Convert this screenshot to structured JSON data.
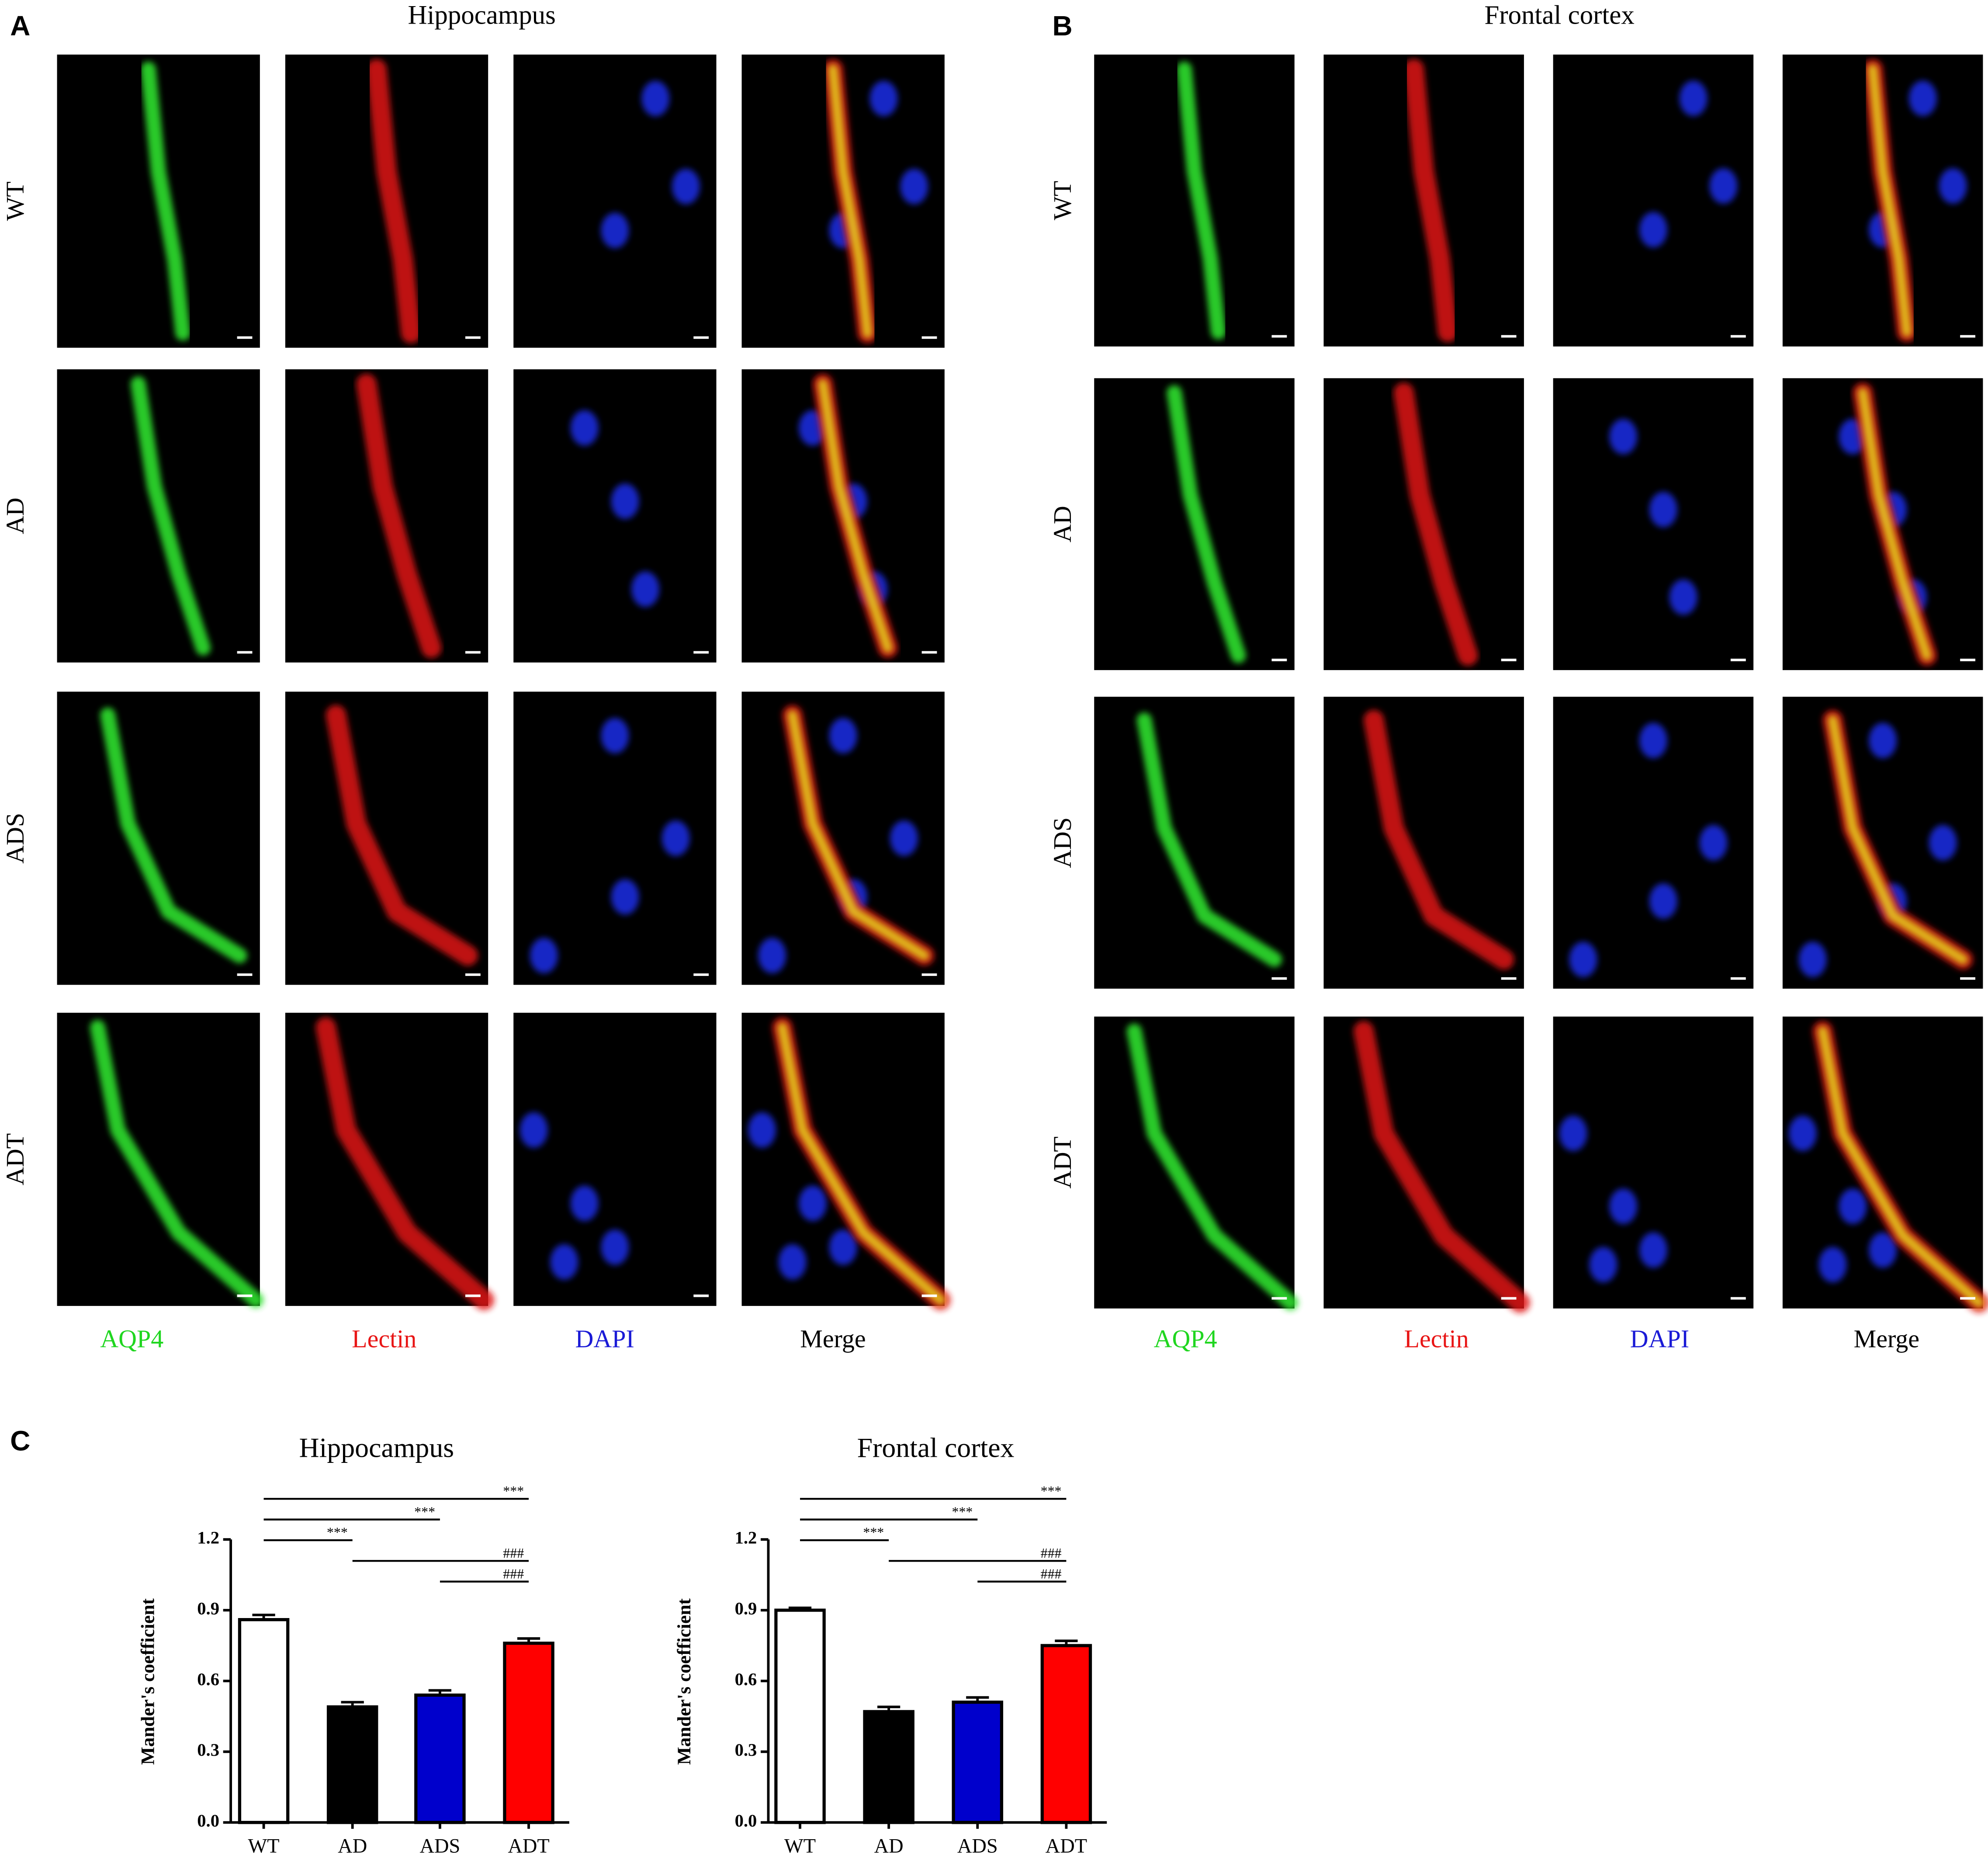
{
  "panels": [
    {
      "letter": "A",
      "title": "Hippocampus",
      "rows": [
        "WT",
        "AD",
        "ADS",
        "ADT"
      ],
      "columns": [
        {
          "label": "AQP4",
          "color": "#1fd61f"
        },
        {
          "label": "Lectin",
          "color": "#e81515"
        },
        {
          "label": "DAPI",
          "color": "#1a1ad6"
        },
        {
          "label": "Merge",
          "color": "#000000"
        }
      ]
    },
    {
      "letter": "B",
      "title": "Frontal cortex",
      "rows": [
        "WT",
        "AD",
        "ADS",
        "ADT"
      ],
      "columns": [
        {
          "label": "AQP4",
          "color": "#1fd61f"
        },
        {
          "label": "Lectin",
          "color": "#e81515"
        },
        {
          "label": "DAPI",
          "color": "#1a1ad6"
        },
        {
          "label": "Merge",
          "color": "#000000"
        }
      ]
    }
  ],
  "panel_c_letter": "C",
  "chart_data": [
    {
      "type": "bar",
      "title": "Hippocampus",
      "y_label": "Mander's coefficient",
      "categories": [
        "WT",
        "AD",
        "ADS",
        "ADT"
      ],
      "values": [
        0.86,
        0.49,
        0.54,
        0.76
      ],
      "errors": [
        0.02,
        0.02,
        0.02,
        0.02
      ],
      "colors": [
        "#ffffff",
        "#000000",
        "#0000cc",
        "#ff0000"
      ],
      "ylim": [
        0,
        1.2
      ],
      "yticks": [
        {
          "value": 0,
          "label": "0.0"
        },
        0.3,
        0.6,
        0.9,
        1.2
      ],
      "comparisons": [
        {
          "between": [
            "WT",
            "ADT"
          ],
          "label": "***"
        },
        {
          "between": [
            "WT",
            "ADS"
          ],
          "label": "***"
        },
        {
          "between": [
            "WT",
            "AD"
          ],
          "label": "***"
        },
        {
          "between": [
            "AD",
            "ADT"
          ],
          "label": "###"
        },
        {
          "between": [
            "ADS",
            "ADT"
          ],
          "label": "###"
        }
      ]
    },
    {
      "type": "bar",
      "title": "Frontal cortex",
      "y_label": "Mander's coefficient",
      "categories": [
        "WT",
        "AD",
        "ADS",
        "ADT"
      ],
      "values": [
        0.9,
        0.47,
        0.51,
        0.75
      ],
      "errors": [
        0.01,
        0.02,
        0.02,
        0.02
      ],
      "colors": [
        "#ffffff",
        "#000000",
        "#0000cc",
        "#ff0000"
      ],
      "ylim": [
        0,
        1.2
      ],
      "yticks": [
        {
          "value": 0,
          "label": "0.0"
        },
        0.3,
        0.6,
        0.9,
        1.2
      ],
      "comparisons": [
        {
          "between": [
            "WT",
            "ADT"
          ],
          "label": "***"
        },
        {
          "between": [
            "WT",
            "ADS"
          ],
          "label": "***"
        },
        {
          "between": [
            "WT",
            "AD"
          ],
          "label": "***"
        },
        {
          "between": [
            "AD",
            "ADT"
          ],
          "label": "###"
        },
        {
          "between": [
            "ADS",
            "ADT"
          ],
          "label": "###"
        }
      ]
    }
  ]
}
